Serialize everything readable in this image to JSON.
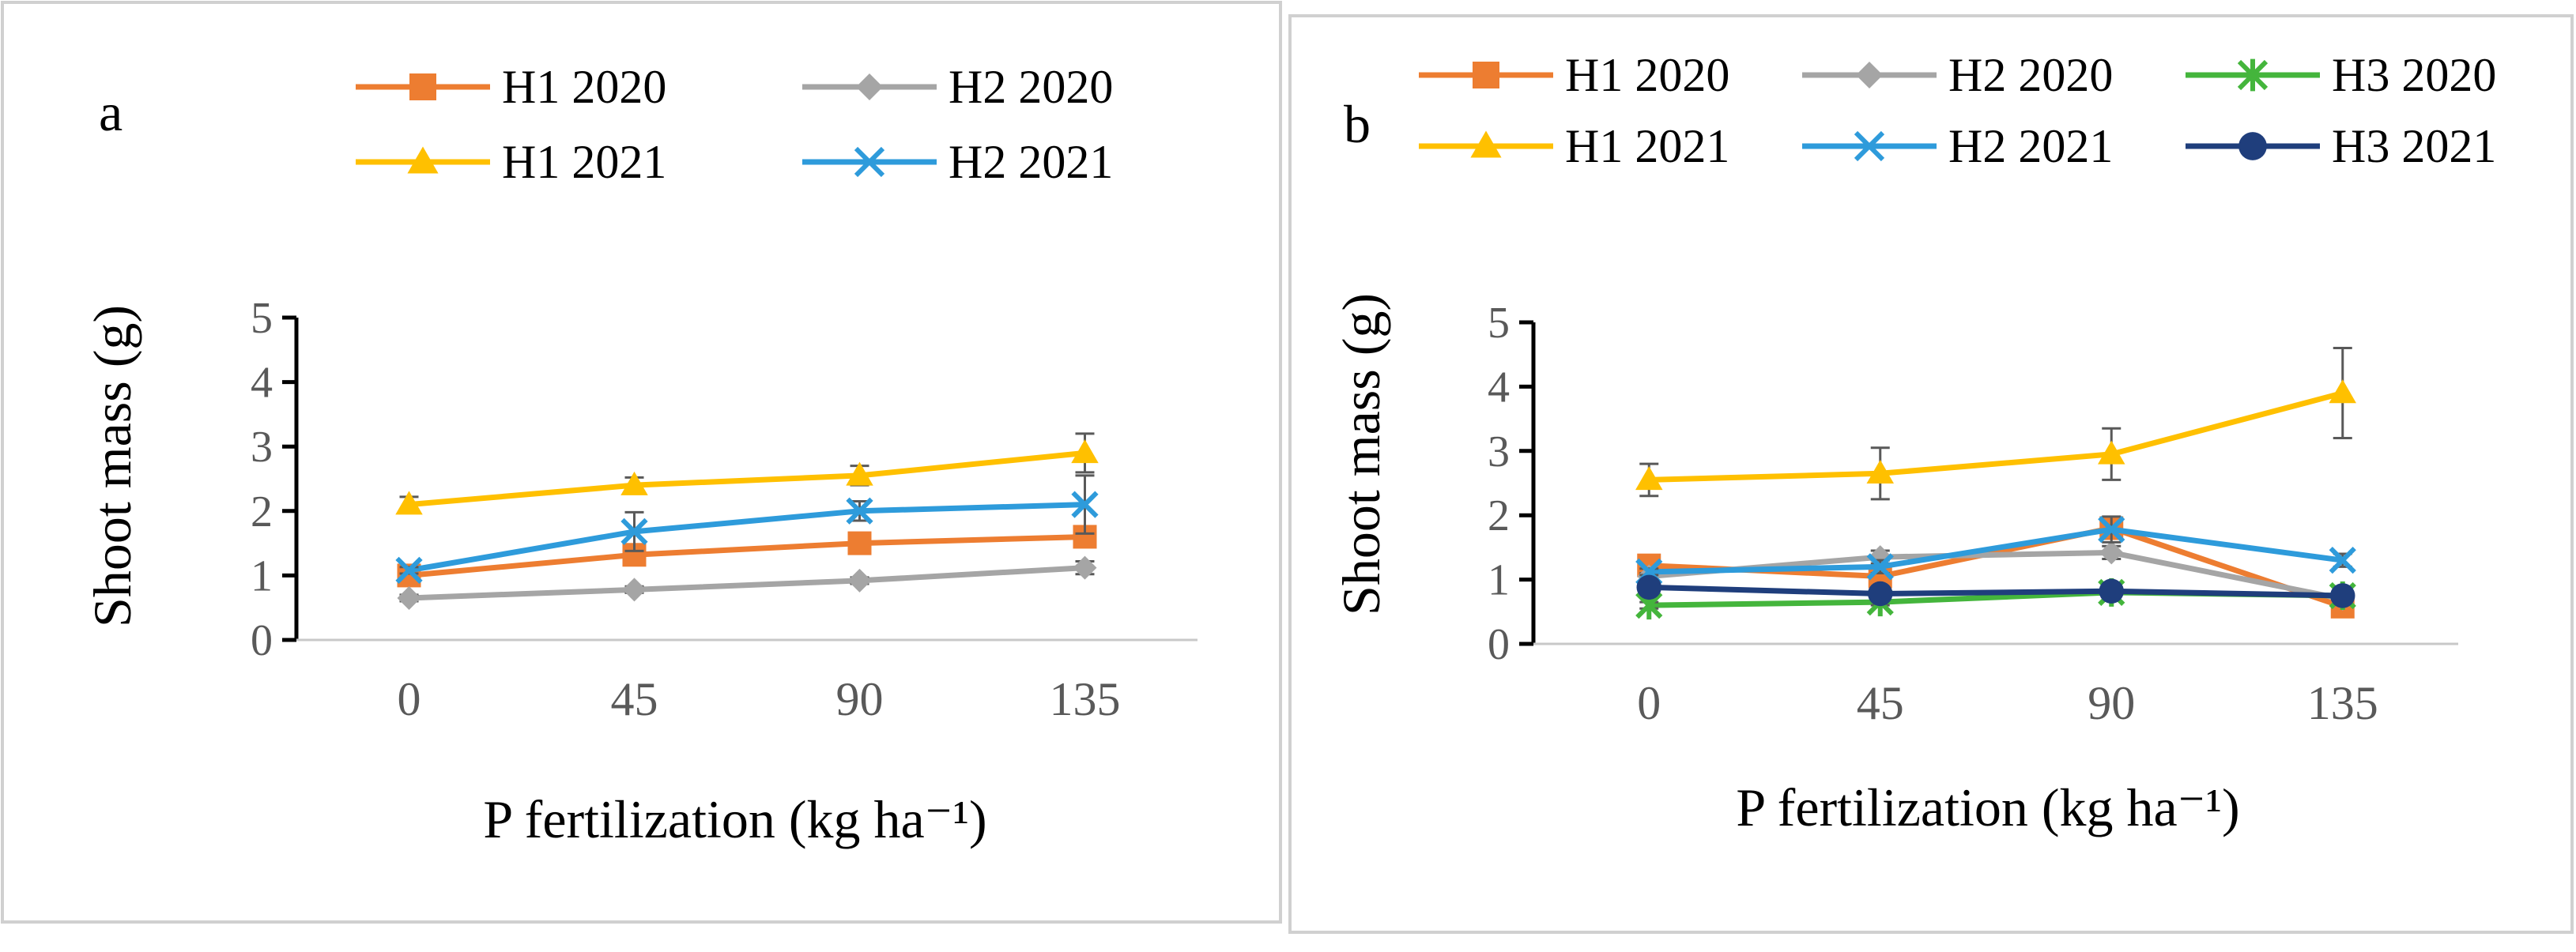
{
  "chart_data": [
    {
      "panel_label": "a",
      "type": "line",
      "title": "",
      "xlabel": "P fertilization (kg ha⁻¹)",
      "ylabel": "Shoot mass (g)",
      "categories": [
        "0",
        "45",
        "90",
        "135"
      ],
      "yticks": [
        "0",
        "1",
        "2",
        "3",
        "4",
        "5"
      ],
      "ylim": [
        0,
        5
      ],
      "grid": false,
      "legend_position": "top",
      "series": [
        {
          "name": "H1 2020",
          "color": "#ED7D31",
          "marker": "square",
          "values": [
            1.0,
            1.32,
            1.5,
            1.6
          ],
          "errors": [
            0.05,
            0.1,
            0.1,
            0.1
          ]
        },
        {
          "name": "H2 2020",
          "color": "#A5A5A5",
          "marker": "diamond",
          "values": [
            0.65,
            0.78,
            0.92,
            1.12
          ],
          "errors": [
            0.05,
            0.05,
            0.05,
            0.1
          ]
        },
        {
          "name": "H1 2021",
          "color": "#FFC000",
          "marker": "triangle",
          "values": [
            2.1,
            2.4,
            2.55,
            2.9
          ],
          "errors": [
            0.12,
            0.12,
            0.15,
            0.3
          ]
        },
        {
          "name": "H2 2021",
          "color": "#2E9BDB",
          "marker": "x",
          "values": [
            1.08,
            1.68,
            2.0,
            2.1
          ],
          "errors": [
            0.05,
            0.3,
            0.15,
            0.45
          ]
        }
      ]
    },
    {
      "panel_label": "b",
      "type": "line",
      "title": "",
      "xlabel": "P fertilization (kg ha⁻¹)",
      "ylabel": "Shoot mass (g)",
      "categories": [
        "0",
        "45",
        "90",
        "135"
      ],
      "yticks": [
        "0",
        "1",
        "2",
        "3",
        "4",
        "5"
      ],
      "ylim": [
        0,
        5
      ],
      "grid": false,
      "legend_position": "top",
      "series": [
        {
          "name": "H1 2020",
          "color": "#ED7D31",
          "marker": "square",
          "values": [
            1.22,
            1.05,
            1.8,
            0.58
          ],
          "errors": [
            0.1,
            0.1,
            0.15,
            0.1
          ]
        },
        {
          "name": "H2 2020",
          "color": "#A5A5A5",
          "marker": "diamond",
          "values": [
            1.05,
            1.35,
            1.42,
            0.7
          ],
          "errors": [
            0.05,
            0.1,
            0.1,
            0.05
          ]
        },
        {
          "name": "H3 2020",
          "color": "#44B53C",
          "marker": "asterisk",
          "values": [
            0.6,
            0.65,
            0.8,
            0.75
          ],
          "errors": [
            0.05,
            0.05,
            0.05,
            0.05
          ]
        },
        {
          "name": "H1 2021",
          "color": "#FFC000",
          "marker": "triangle",
          "values": [
            2.55,
            2.65,
            2.95,
            3.9
          ],
          "errors": [
            0.25,
            0.4,
            0.4,
            0.7
          ]
        },
        {
          "name": "H2 2021",
          "color": "#2E9BDB",
          "marker": "x",
          "values": [
            1.12,
            1.2,
            1.78,
            1.3
          ],
          "errors": [
            0.05,
            0.1,
            0.2,
            0.1
          ]
        },
        {
          "name": "H3 2021",
          "color": "#1F3E7C",
          "marker": "circle",
          "values": [
            0.88,
            0.78,
            0.82,
            0.75
          ],
          "errors": [
            0.05,
            0.05,
            0.05,
            0.05
          ]
        }
      ]
    }
  ]
}
